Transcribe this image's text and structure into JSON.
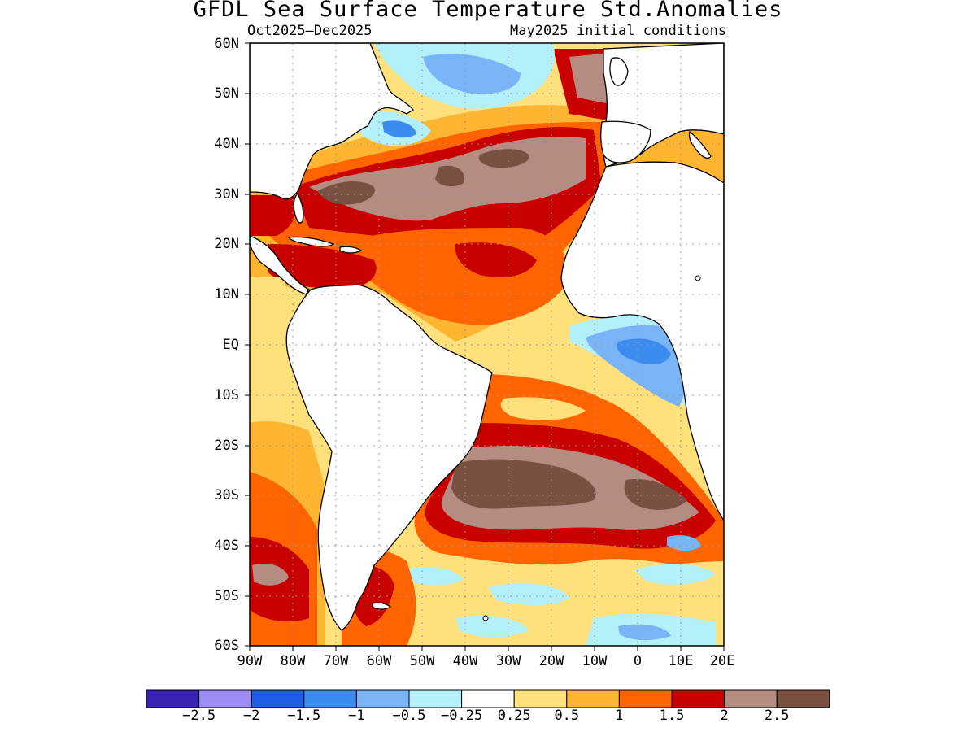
{
  "title": "GFDL Sea Surface Temperature Std.Anomalies",
  "period": "Oct2025–Dec2025",
  "initial_conditions": "May2025 initial conditions",
  "latitude_labels": [
    "60N",
    "50N",
    "40N",
    "30N",
    "20N",
    "10N",
    "EQ",
    "10S",
    "20S",
    "30S",
    "40S",
    "50S",
    "60S"
  ],
  "longitude_labels": [
    "90W",
    "80W",
    "70W",
    "60W",
    "50W",
    "40W",
    "30W",
    "20W",
    "10W",
    "0",
    "10E",
    "20E"
  ],
  "colorbar": {
    "colors": [
      "#3a22b4",
      "#9c8cf6",
      "#1e5ee6",
      "#3c8cf0",
      "#78b4f6",
      "#b4f0fa",
      "#ffffff",
      "#ffe07a",
      "#ffb432",
      "#ff6400",
      "#c80000",
      "#b48c82",
      "#7a5042"
    ],
    "labels": [
      "−2.5",
      "−2",
      "−1.5",
      "−1",
      "−0.5",
      "−0.25",
      "0.25",
      "0.5",
      "1",
      "1.5",
      "2",
      "2.5"
    ]
  },
  "land_color": "#ffffff",
  "coastline_color": "#000000"
}
